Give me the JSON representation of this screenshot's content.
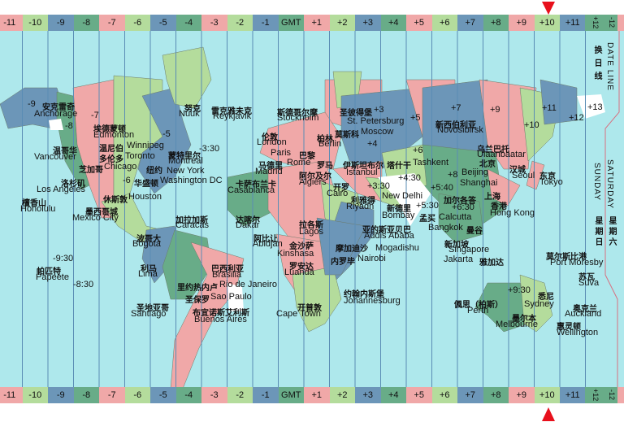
{
  "zones": [
    "-11",
    "-10",
    "-9",
    "-8",
    "-7",
    "-6",
    "-5",
    "-4",
    "-3",
    "-2",
    "-1",
    "GMT",
    "+1",
    "+2",
    "+3",
    "+4",
    "+5",
    "+6",
    "+7",
    "+8",
    "+9",
    "+10",
    "+11"
  ],
  "zone_plus12": "+12",
  "zone_minus12": "-12",
  "highlighted_zone": "+10",
  "colors": {
    "pink": "#f0a8a8",
    "light_green": "#b4dc9c",
    "blue": "#6c96b8",
    "dark_green": "#68ac88",
    "ocean": "#aee8ec",
    "marker": "#e8101c"
  },
  "date_line": {
    "zh": "换日线",
    "en": "DATE LINE",
    "sunday": "SUNDAY",
    "saturday": "SATURDAY",
    "sunday_zh": "星期日",
    "saturday_zh": "星期六"
  },
  "zone_labels": [
    "-9",
    "-7",
    "-8",
    "-5",
    "-6",
    "-3:30",
    "-9:30",
    "-8:30",
    "+3",
    "+5",
    "+4",
    "+6",
    "+7",
    "+9",
    "+11",
    "+12",
    "+10",
    "+13",
    "+8",
    "+3:30",
    "+4:30",
    "+5:30",
    "+5:40",
    "+6:30",
    "+9:30"
  ],
  "cities": [
    {
      "zh": "安克雷奇",
      "en": "Anchorage"
    },
    {
      "zh": "埃德蒙顿",
      "en": "Edmonton"
    },
    {
      "zh": "温哥华",
      "en": "Vancouver"
    },
    {
      "zh": "温尼伯",
      "en": "Winnipeg"
    },
    {
      "zh": "多伦多",
      "en": "Toronto"
    },
    {
      "zh": "芝加哥",
      "en": "Chicago"
    },
    {
      "zh": "蒙特里尔",
      "en": "Montreal"
    },
    {
      "zh": "纽约",
      "en": "New York"
    },
    {
      "zh": "华盛顿",
      "en": "Washington DC"
    },
    {
      "zh": "洛杉矶",
      "en": "Los Angeles"
    },
    {
      "zh": "檀香山",
      "en": "Honolulu"
    },
    {
      "zh": "休斯敦",
      "en": "Houston"
    },
    {
      "zh": "墨西哥城",
      "en": "Mexico City"
    },
    {
      "zh": "努克",
      "en": "Nuuk"
    },
    {
      "zh": "雷克雅未克",
      "en": "Reykjavik"
    },
    {
      "zh": "加拉加斯",
      "en": "Caracas"
    },
    {
      "zh": "波哥大",
      "en": "Bogota"
    },
    {
      "zh": "利马",
      "en": "Lima"
    },
    {
      "zh": "巴西利亚",
      "en": "Brasilia"
    },
    {
      "zh": "里约热内卢",
      "en": "Rio de Janeiro"
    },
    {
      "zh": "圣保罗",
      "en": "Sao Paulo"
    },
    {
      "zh": "圣地亚哥",
      "en": "Santiago"
    },
    {
      "zh": "布宜诺斯艾利斯",
      "en": "Buenos Aires"
    },
    {
      "zh": "帕匹特",
      "en": "Papeete"
    },
    {
      "zh": "斯德哥尔摩",
      "en": "Stockholm"
    },
    {
      "zh": "圣彼得堡",
      "en": "St. Petersburg"
    },
    {
      "zh": "伦敦",
      "en": "London"
    },
    {
      "zh": "莫斯科",
      "en": "Moscow"
    },
    {
      "zh": "柏林",
      "en": "Berlin"
    },
    {
      "zh": "巴黎",
      "en": "Paris"
    },
    {
      "zh": "马德里",
      "en": "Madrid"
    },
    {
      "zh": "罗马",
      "en": "Rome"
    },
    {
      "zh": "伊斯坦布尔",
      "en": "Istanbul"
    },
    {
      "zh": "塔什干",
      "en": "Tashkent"
    },
    {
      "zh": "阿尔及尔",
      "en": "Algiers"
    },
    {
      "zh": "卡萨布兰卡",
      "en": "Casablanca"
    },
    {
      "zh": "开罗",
      "en": "Cairo"
    },
    {
      "zh": "利雅得",
      "en": "Riyadh"
    },
    {
      "zh": "新德里",
      "en": "New Delhi"
    },
    {
      "zh": "加尔各答",
      "en": "Calcutta"
    },
    {
      "zh": "孟买",
      "en": "Bombay"
    },
    {
      "zh": "曼谷",
      "en": "Bangkok"
    },
    {
      "zh": "达喀尔",
      "en": "Dakar"
    },
    {
      "zh": "拉各斯",
      "en": "Lagos"
    },
    {
      "zh": "亚的斯亚贝巴",
      "en": "Addis Ababa"
    },
    {
      "zh": "阿比让",
      "en": "Abidjan"
    },
    {
      "zh": "金沙萨",
      "en": "Kinshasa"
    },
    {
      "zh": "摩加迪沙",
      "en": "Mogadishu"
    },
    {
      "zh": "内罗毕",
      "en": "Nairobi"
    },
    {
      "zh": "罗安达",
      "en": "Luanda"
    },
    {
      "zh": "约翰内斯堡",
      "en": "Johannesburg"
    },
    {
      "zh": "开普敦",
      "en": "Cape Town"
    },
    {
      "zh": "新西伯利亚",
      "en": "Novosibirsk"
    },
    {
      "zh": "乌兰巴托",
      "en": "Ulaanbaatar"
    },
    {
      "zh": "北京",
      "en": "Beijing"
    },
    {
      "zh": "汉城",
      "en": "Seoul"
    },
    {
      "zh": "东京",
      "en": "Tokyo"
    },
    {
      "zh": "上海",
      "en": "Shanghai"
    },
    {
      "zh": "香港",
      "en": "Hong Kong"
    },
    {
      "zh": "新加坡",
      "en": "Singapore"
    },
    {
      "zh": "雅加达",
      "en": "Jakarta"
    },
    {
      "zh": "莫尔斯比港",
      "en": "Port Moresby"
    },
    {
      "zh": "苏瓦",
      "en": "Suva"
    },
    {
      "zh": "偑思（柏斯）",
      "en": "Perth"
    },
    {
      "zh": "悉尼",
      "en": "Sydney"
    },
    {
      "zh": "墨尔本",
      "en": "Melbourne"
    },
    {
      "zh": "奥克兰",
      "en": "Auckland"
    },
    {
      "zh": "惠灵顿",
      "en": "Wellington"
    }
  ]
}
